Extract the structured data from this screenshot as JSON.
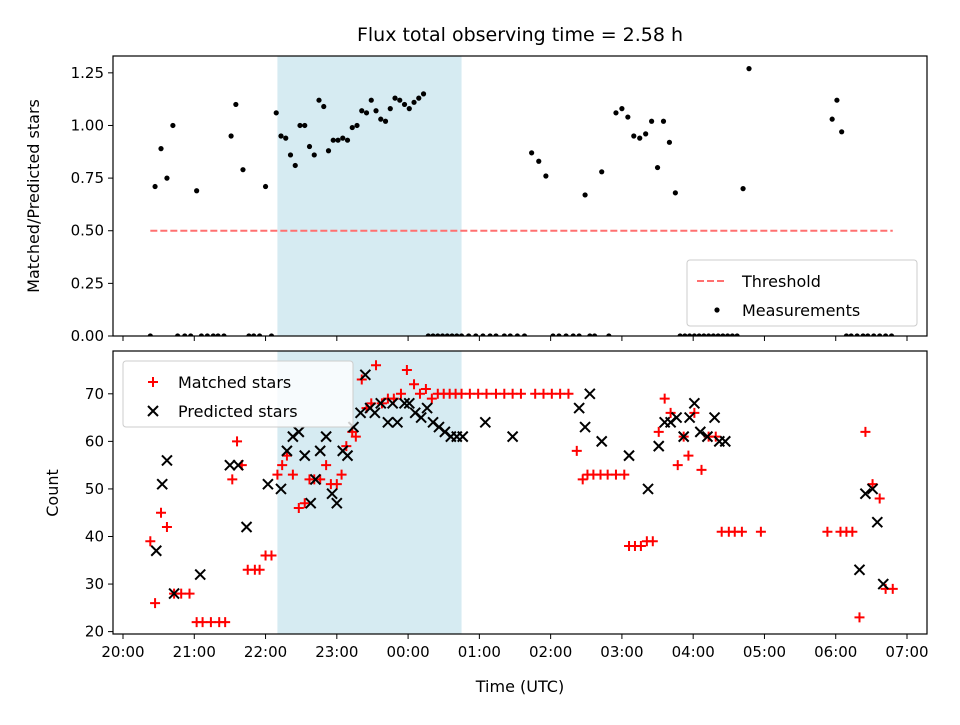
{
  "title": "Flux total observing time = 2.58 h",
  "xlabel": "Time (UTC)",
  "x_ticks": [
    "20:00",
    "21:00",
    "22:00",
    "23:00",
    "00:00",
    "01:00",
    "02:00",
    "03:00",
    "04:00",
    "05:00",
    "06:00",
    "07:00"
  ],
  "shaded_interval": [
    "22:10",
    "00:45"
  ],
  "chart_data": [
    {
      "type": "scatter",
      "ylabel": "Matched/Predicted stars",
      "ylim": [
        0,
        1.33
      ],
      "y_ticks": [
        "0.00",
        "0.25",
        "0.50",
        "0.75",
        "1.00",
        "1.25"
      ],
      "threshold": {
        "name": "Threshold",
        "value": 0.5,
        "x_range": [
          "20:23",
          "06:48"
        ],
        "color": "#ff7070"
      },
      "legend": {
        "placement": "lower-right",
        "entries": [
          "Threshold",
          "Measurements"
        ]
      },
      "series": [
        {
          "name": "Measurements",
          "color": "#000000",
          "x": [
            "20:23",
            "20:27",
            "20:32",
            "20:37",
            "20:42",
            "20:46",
            "20:52",
            "20:57",
            "21:02",
            "21:06",
            "21:11",
            "21:16",
            "21:20",
            "21:25",
            "21:31",
            "21:35",
            "21:41",
            "21:46",
            "21:50",
            "21:55",
            "22:00",
            "22:05",
            "22:09",
            "22:13",
            "22:17",
            "22:21",
            "22:25",
            "22:29",
            "22:33",
            "22:37",
            "22:41",
            "22:45",
            "22:49",
            "22:53",
            "22:57",
            "23:01",
            "23:05",
            "23:09",
            "23:13",
            "23:17",
            "23:21",
            "23:25",
            "23:29",
            "23:33",
            "23:37",
            "23:41",
            "23:45",
            "23:49",
            "23:53",
            "23:57",
            "00:01",
            "00:05",
            "00:09",
            "00:13",
            "00:17",
            "00:21",
            "00:25",
            "00:29",
            "00:33",
            "00:37",
            "00:41",
            "00:45",
            "00:51",
            "00:57",
            "01:03",
            "01:09",
            "01:14",
            "01:21",
            "01:26",
            "01:32",
            "01:38",
            "01:44",
            "01:50",
            "01:56",
            "02:02",
            "02:07",
            "02:13",
            "02:19",
            "02:24",
            "02:29",
            "02:33",
            "02:37",
            "02:43",
            "02:49",
            "02:55",
            "03:00",
            "03:05",
            "03:10",
            "03:15",
            "03:20",
            "03:25",
            "03:30",
            "03:35",
            "03:40",
            "03:45",
            "03:49",
            "03:53",
            "03:57",
            "04:01",
            "04:05",
            "04:09",
            "04:13",
            "04:17",
            "04:21",
            "04:25",
            "04:29",
            "04:33",
            "04:37",
            "04:42",
            "04:47",
            "05:57",
            "06:01",
            "06:05",
            "06:09",
            "06:13",
            "06:18",
            "06:23",
            "06:27",
            "06:32",
            "06:37",
            "06:42",
            "06:47"
          ],
          "y": [
            0.0,
            0.71,
            0.89,
            0.75,
            1.0,
            0.0,
            0.0,
            0.0,
            0.69,
            0.0,
            0.0,
            0.0,
            0.0,
            0.0,
            0.95,
            1.1,
            0.79,
            0.0,
            0.0,
            0.0,
            0.71,
            0.0,
            1.06,
            0.95,
            0.94,
            0.86,
            0.81,
            1.0,
            1.0,
            0.9,
            0.86,
            1.12,
            1.09,
            0.88,
            0.93,
            0.93,
            0.94,
            0.93,
            0.99,
            1.0,
            1.07,
            1.06,
            1.12,
            1.07,
            1.03,
            1.02,
            1.08,
            1.13,
            1.12,
            1.1,
            1.08,
            1.11,
            1.13,
            1.15,
            0.0,
            0.0,
            0.0,
            0.0,
            0.0,
            0.0,
            0.0,
            0.0,
            0.0,
            0.0,
            0.0,
            0.0,
            0.0,
            0.0,
            0.0,
            0.0,
            0.0,
            0.87,
            0.83,
            0.76,
            0.0,
            0.0,
            0.0,
            0.0,
            0.0,
            0.67,
            0.0,
            0.0,
            0.78,
            0.0,
            1.06,
            1.08,
            1.04,
            0.95,
            0.94,
            0.96,
            1.02,
            0.8,
            1.02,
            0.92,
            0.68,
            0.0,
            0.0,
            0.0,
            0.0,
            0.0,
            0.0,
            0.0,
            0.0,
            0.0,
            0.0,
            0.0,
            0.0,
            0.0,
            0.7,
            1.27,
            1.03,
            1.12,
            0.97,
            0.0,
            0.0,
            0.0,
            0.0,
            0.0,
            0.0,
            0.0,
            0.0,
            0.0
          ]
        }
      ]
    },
    {
      "type": "scatter",
      "ylabel": "Count",
      "ylim": [
        19.5,
        79
      ],
      "y_ticks": [
        "20",
        "30",
        "40",
        "50",
        "60",
        "70"
      ],
      "legend": {
        "placement": "upper-left",
        "entries": [
          "Matched stars",
          "Predicted stars"
        ]
      },
      "series": [
        {
          "name": "Matched stars",
          "marker": "plus",
          "color": "#ff0000",
          "x": [
            "20:23",
            "20:27",
            "20:32",
            "20:37",
            "20:43",
            "20:49",
            "20:56",
            "21:02",
            "21:07",
            "21:14",
            "21:21",
            "21:26",
            "21:32",
            "21:36",
            "21:40",
            "21:45",
            "21:51",
            "21:55",
            "22:00",
            "22:05",
            "22:10",
            "22:14",
            "22:18",
            "22:23",
            "22:28",
            "22:33",
            "22:37",
            "22:41",
            "22:46",
            "22:51",
            "22:55",
            "23:00",
            "23:04",
            "23:08",
            "23:13",
            "23:16",
            "23:21",
            "23:25",
            "23:29",
            "23:33",
            "23:38",
            "23:43",
            "23:48",
            "23:54",
            "23:59",
            "00:05",
            "00:10",
            "00:15",
            "00:20",
            "00:25",
            "00:30",
            "00:35",
            "00:40",
            "00:45",
            "00:52",
            "00:59",
            "01:06",
            "01:14",
            "01:21",
            "01:28",
            "01:35",
            "01:47",
            "01:54",
            "02:01",
            "02:08",
            "02:15",
            "02:22",
            "02:27",
            "02:31",
            "02:36",
            "02:42",
            "02:48",
            "02:55",
            "03:02",
            "03:06",
            "03:11",
            "03:16",
            "03:21",
            "03:26",
            "03:31",
            "03:36",
            "03:41",
            "03:47",
            "03:52",
            "03:56",
            "04:01",
            "04:07",
            "04:13",
            "04:19",
            "04:24",
            "04:30",
            "04:35",
            "04:41",
            "04:57",
            "05:53",
            "06:04",
            "06:09",
            "06:14",
            "06:20",
            "06:25",
            "06:31",
            "06:37",
            "06:42",
            "06:48"
          ],
          "y": [
            39,
            26,
            45,
            42,
            28,
            28,
            28,
            22,
            22,
            22,
            22,
            22,
            52,
            60,
            55,
            33,
            33,
            33,
            36,
            36,
            53,
            55,
            57,
            53,
            46,
            47,
            52,
            52,
            52,
            55,
            51,
            51,
            53,
            59,
            62,
            61,
            73,
            67,
            68,
            76,
            68,
            69,
            69,
            70,
            75,
            72,
            70,
            71,
            69,
            70,
            70,
            70,
            70,
            70,
            70,
            70,
            70,
            70,
            70,
            70,
            70,
            70,
            70,
            70,
            70,
            70,
            58,
            52,
            53,
            53,
            53,
            53,
            53,
            53,
            38,
            38,
            38,
            39,
            39,
            62,
            69,
            66,
            55,
            61,
            57,
            66,
            54,
            61,
            61,
            41,
            41,
            41,
            41,
            41,
            41,
            41,
            41,
            41,
            23,
            62,
            51,
            48,
            29,
            29
          ]
        },
        {
          "name": "Predicted stars",
          "marker": "x",
          "color": "#000000",
          "x": [
            "20:28",
            "20:33",
            "20:37",
            "20:43",
            "21:05",
            "21:30",
            "21:37",
            "21:44",
            "22:02",
            "22:13",
            "22:18",
            "22:23",
            "22:28",
            "22:33",
            "22:38",
            "22:42",
            "22:46",
            "22:51",
            "22:56",
            "23:00",
            "23:05",
            "23:09",
            "23:14",
            "23:20",
            "23:24",
            "23:28",
            "23:32",
            "23:37",
            "23:43",
            "23:47",
            "23:51",
            "23:57",
            "00:01",
            "00:06",
            "00:11",
            "00:16",
            "00:21",
            "00:26",
            "00:31",
            "00:36",
            "00:41",
            "00:46",
            "01:05",
            "01:28",
            "02:24",
            "02:29",
            "02:33",
            "02:43",
            "03:06",
            "03:22",
            "03:31",
            "03:36",
            "03:41",
            "03:46",
            "03:52",
            "03:57",
            "04:01",
            "04:06",
            "04:12",
            "04:18",
            "04:22",
            "04:27",
            "06:20",
            "06:25",
            "06:31",
            "06:35",
            "06:40"
          ],
          "y": [
            37,
            51,
            56,
            28,
            32,
            55,
            55,
            42,
            51,
            50,
            58,
            61,
            62,
            57,
            47,
            52,
            58,
            61,
            49,
            47,
            58,
            57,
            63,
            66,
            74,
            67,
            66,
            68,
            64,
            68,
            64,
            68,
            68,
            66,
            65,
            67,
            64,
            63,
            62,
            61,
            61,
            61,
            64,
            61,
            67,
            63,
            70,
            60,
            57,
            50,
            59,
            64,
            64,
            65,
            61,
            65,
            68,
            62,
            61,
            65,
            60,
            60,
            33,
            49,
            50,
            43,
            30
          ]
        }
      ]
    }
  ]
}
